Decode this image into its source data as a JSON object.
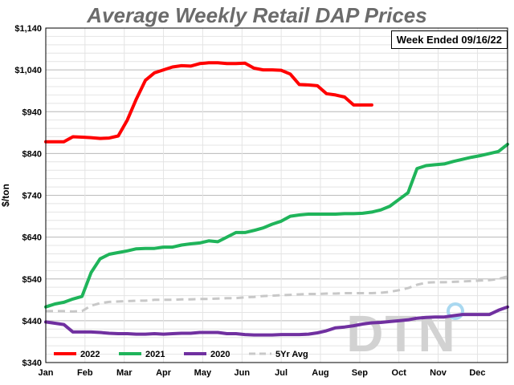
{
  "chart_data": {
    "type": "line",
    "title": "Average Weekly Retail DAP Prices",
    "note": "Week Ended 09/16/22",
    "ylabel": "$/ton",
    "xlabel": "",
    "ylim": [
      340,
      1140
    ],
    "xlim": [
      1,
      52
    ],
    "y_ticks": [
      "$1,140",
      "$1,040",
      "$940",
      "$840",
      "$740",
      "$640",
      "$540",
      "$440",
      "$340"
    ],
    "y_tick_values": [
      1140,
      1040,
      940,
      840,
      740,
      640,
      540,
      440,
      340
    ],
    "x_ticks": [
      "Jan",
      "Feb",
      "Mar",
      "Apr",
      "May",
      "Jun",
      "Jul",
      "Aug",
      "Sep",
      "Oct",
      "Nov",
      "Dec"
    ],
    "x_tick_weeks": [
      1,
      5.33,
      9.67,
      14,
      18.33,
      22.67,
      27,
      31.33,
      35.67,
      40,
      44.33,
      48.67
    ],
    "grid": true,
    "legend_position": "bottom",
    "series": [
      {
        "name": "2022",
        "color": "#ff0000",
        "dashed": false,
        "x": [
          1,
          2,
          3,
          4,
          5,
          6,
          7,
          8,
          9,
          10,
          11,
          12,
          13,
          14,
          15,
          16,
          17,
          18,
          19,
          20,
          21,
          22,
          23,
          24,
          25,
          26,
          27,
          28,
          29,
          30,
          31,
          32,
          33,
          34,
          35,
          36,
          37
        ],
        "y": [
          868,
          868,
          868,
          880,
          879,
          878,
          876,
          877,
          882,
          920,
          970,
          1015,
          1033,
          1040,
          1047,
          1050,
          1049,
          1055,
          1057,
          1057,
          1055,
          1055,
          1056,
          1044,
          1040,
          1040,
          1039,
          1030,
          1005,
          1004,
          1002,
          983,
          980,
          975,
          956,
          956,
          956
        ]
      },
      {
        "name": "2021",
        "color": "#1fb45a",
        "dashed": false,
        "x": [
          1,
          2,
          3,
          4,
          5,
          6,
          7,
          8,
          9,
          10,
          11,
          12,
          13,
          14,
          15,
          16,
          17,
          18,
          19,
          20,
          21,
          22,
          23,
          24,
          25,
          26,
          27,
          28,
          29,
          30,
          31,
          32,
          33,
          34,
          35,
          36,
          37,
          38,
          39,
          40,
          41,
          42,
          43,
          44,
          45,
          46,
          47,
          48,
          49,
          50,
          51,
          52
        ],
        "y": [
          473,
          480,
          484,
          492,
          498,
          555,
          588,
          599,
          603,
          607,
          612,
          613,
          613,
          616,
          616,
          621,
          624,
          626,
          631,
          629,
          640,
          651,
          651,
          656,
          662,
          671,
          678,
          690,
          693,
          695,
          695,
          695,
          695,
          696,
          696,
          697,
          700,
          705,
          714,
          730,
          746,
          804,
          811,
          813,
          815,
          821,
          826,
          831,
          835,
          840,
          845,
          862
        ]
      },
      {
        "name": "2020",
        "color": "#7030a0",
        "dashed": false,
        "x": [
          1,
          2,
          3,
          4,
          5,
          6,
          7,
          8,
          9,
          10,
          11,
          12,
          13,
          14,
          15,
          16,
          17,
          18,
          19,
          20,
          21,
          22,
          23,
          24,
          25,
          26,
          27,
          28,
          29,
          30,
          31,
          32,
          33,
          34,
          35,
          36,
          37,
          38,
          39,
          40,
          41,
          42,
          43,
          44,
          45,
          46,
          47,
          48,
          49,
          50,
          51,
          52
        ],
        "y": [
          437,
          434,
          431,
          413,
          413,
          413,
          412,
          410,
          409,
          409,
          408,
          408,
          409,
          408,
          409,
          410,
          410,
          412,
          412,
          412,
          409,
          409,
          407,
          406,
          406,
          406,
          407,
          407,
          407,
          408,
          411,
          416,
          423,
          425,
          428,
          432,
          435,
          436,
          438,
          440,
          442,
          446,
          448,
          449,
          449,
          452,
          455,
          455,
          455,
          455,
          465,
          473
        ]
      },
      {
        "name": "5Yr Avg",
        "color": "#c8c8c8",
        "dashed": true,
        "x": [
          1,
          2,
          3,
          4,
          5,
          6,
          7,
          8,
          9,
          10,
          11,
          12,
          13,
          14,
          15,
          16,
          17,
          18,
          19,
          20,
          21,
          22,
          23,
          24,
          25,
          26,
          27,
          28,
          29,
          30,
          31,
          32,
          33,
          34,
          35,
          36,
          37,
          38,
          39,
          40,
          41,
          42,
          43,
          44,
          45,
          46,
          47,
          48,
          49,
          50,
          51,
          52
        ],
        "y": [
          463,
          463,
          463,
          462,
          463,
          476,
          482,
          485,
          486,
          487,
          488,
          488,
          490,
          490,
          490,
          491,
          491,
          492,
          492,
          493,
          494,
          494,
          496,
          497,
          499,
          500,
          501,
          502,
          503,
          504,
          504,
          505,
          505,
          506,
          506,
          506,
          506,
          507,
          509,
          513,
          518,
          526,
          531,
          532,
          532,
          533,
          534,
          535,
          536,
          537,
          540,
          546
        ]
      }
    ]
  },
  "watermark": "DTN"
}
